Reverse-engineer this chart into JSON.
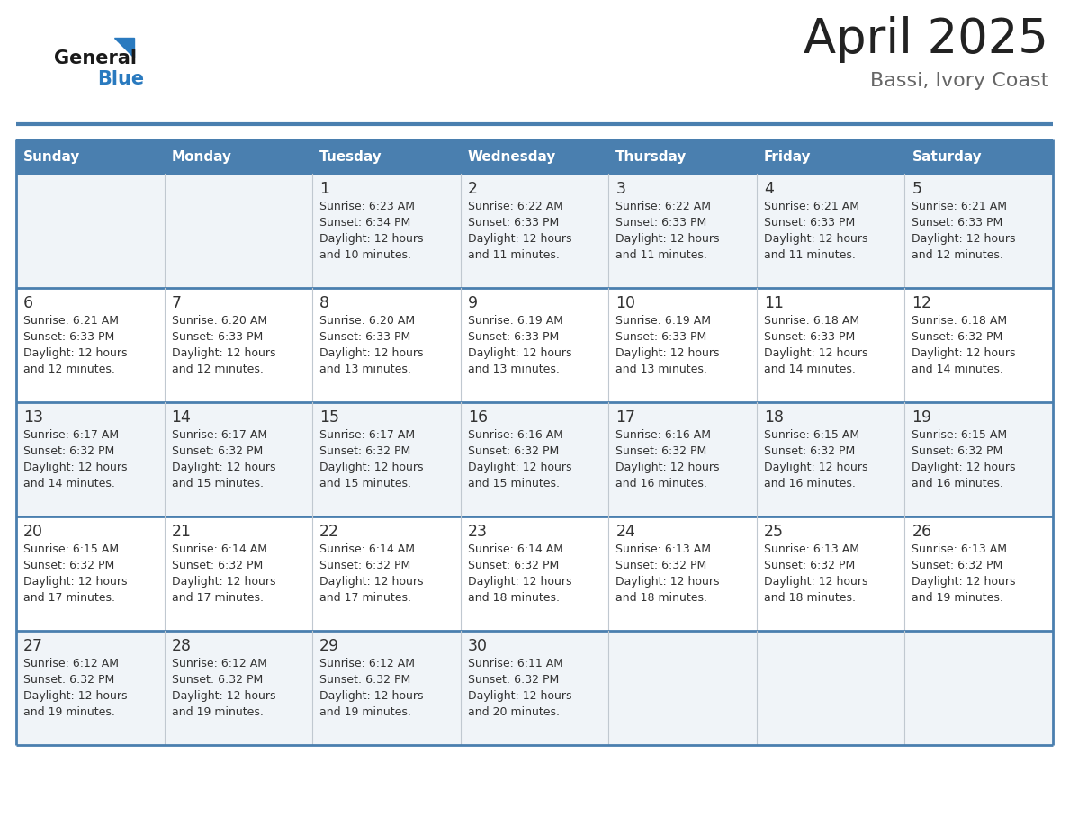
{
  "title": "April 2025",
  "subtitle": "Bassi, Ivory Coast",
  "header_color": "#4a7faf",
  "header_text_color": "#ffffff",
  "row0_color": "#f0f4f8",
  "row1_color": "#ffffff",
  "border_color": "#4a7faf",
  "text_color": "#333333",
  "days_of_week": [
    "Sunday",
    "Monday",
    "Tuesday",
    "Wednesday",
    "Thursday",
    "Friday",
    "Saturday"
  ],
  "logo_general_color": "#1a1a1a",
  "logo_blue_color": "#2a7abf",
  "logo_triangle_color": "#2a7abf",
  "title_color": "#222222",
  "subtitle_color": "#666666",
  "weeks": [
    [
      {
        "day": "",
        "info": ""
      },
      {
        "day": "",
        "info": ""
      },
      {
        "day": "1",
        "info": "Sunrise: 6:23 AM\nSunset: 6:34 PM\nDaylight: 12 hours\nand 10 minutes."
      },
      {
        "day": "2",
        "info": "Sunrise: 6:22 AM\nSunset: 6:33 PM\nDaylight: 12 hours\nand 11 minutes."
      },
      {
        "day": "3",
        "info": "Sunrise: 6:22 AM\nSunset: 6:33 PM\nDaylight: 12 hours\nand 11 minutes."
      },
      {
        "day": "4",
        "info": "Sunrise: 6:21 AM\nSunset: 6:33 PM\nDaylight: 12 hours\nand 11 minutes."
      },
      {
        "day": "5",
        "info": "Sunrise: 6:21 AM\nSunset: 6:33 PM\nDaylight: 12 hours\nand 12 minutes."
      }
    ],
    [
      {
        "day": "6",
        "info": "Sunrise: 6:21 AM\nSunset: 6:33 PM\nDaylight: 12 hours\nand 12 minutes."
      },
      {
        "day": "7",
        "info": "Sunrise: 6:20 AM\nSunset: 6:33 PM\nDaylight: 12 hours\nand 12 minutes."
      },
      {
        "day": "8",
        "info": "Sunrise: 6:20 AM\nSunset: 6:33 PM\nDaylight: 12 hours\nand 13 minutes."
      },
      {
        "day": "9",
        "info": "Sunrise: 6:19 AM\nSunset: 6:33 PM\nDaylight: 12 hours\nand 13 minutes."
      },
      {
        "day": "10",
        "info": "Sunrise: 6:19 AM\nSunset: 6:33 PM\nDaylight: 12 hours\nand 13 minutes."
      },
      {
        "day": "11",
        "info": "Sunrise: 6:18 AM\nSunset: 6:33 PM\nDaylight: 12 hours\nand 14 minutes."
      },
      {
        "day": "12",
        "info": "Sunrise: 6:18 AM\nSunset: 6:32 PM\nDaylight: 12 hours\nand 14 minutes."
      }
    ],
    [
      {
        "day": "13",
        "info": "Sunrise: 6:17 AM\nSunset: 6:32 PM\nDaylight: 12 hours\nand 14 minutes."
      },
      {
        "day": "14",
        "info": "Sunrise: 6:17 AM\nSunset: 6:32 PM\nDaylight: 12 hours\nand 15 minutes."
      },
      {
        "day": "15",
        "info": "Sunrise: 6:17 AM\nSunset: 6:32 PM\nDaylight: 12 hours\nand 15 minutes."
      },
      {
        "day": "16",
        "info": "Sunrise: 6:16 AM\nSunset: 6:32 PM\nDaylight: 12 hours\nand 15 minutes."
      },
      {
        "day": "17",
        "info": "Sunrise: 6:16 AM\nSunset: 6:32 PM\nDaylight: 12 hours\nand 16 minutes."
      },
      {
        "day": "18",
        "info": "Sunrise: 6:15 AM\nSunset: 6:32 PM\nDaylight: 12 hours\nand 16 minutes."
      },
      {
        "day": "19",
        "info": "Sunrise: 6:15 AM\nSunset: 6:32 PM\nDaylight: 12 hours\nand 16 minutes."
      }
    ],
    [
      {
        "day": "20",
        "info": "Sunrise: 6:15 AM\nSunset: 6:32 PM\nDaylight: 12 hours\nand 17 minutes."
      },
      {
        "day": "21",
        "info": "Sunrise: 6:14 AM\nSunset: 6:32 PM\nDaylight: 12 hours\nand 17 minutes."
      },
      {
        "day": "22",
        "info": "Sunrise: 6:14 AM\nSunset: 6:32 PM\nDaylight: 12 hours\nand 17 minutes."
      },
      {
        "day": "23",
        "info": "Sunrise: 6:14 AM\nSunset: 6:32 PM\nDaylight: 12 hours\nand 18 minutes."
      },
      {
        "day": "24",
        "info": "Sunrise: 6:13 AM\nSunset: 6:32 PM\nDaylight: 12 hours\nand 18 minutes."
      },
      {
        "day": "25",
        "info": "Sunrise: 6:13 AM\nSunset: 6:32 PM\nDaylight: 12 hours\nand 18 minutes."
      },
      {
        "day": "26",
        "info": "Sunrise: 6:13 AM\nSunset: 6:32 PM\nDaylight: 12 hours\nand 19 minutes."
      }
    ],
    [
      {
        "day": "27",
        "info": "Sunrise: 6:12 AM\nSunset: 6:32 PM\nDaylight: 12 hours\nand 19 minutes."
      },
      {
        "day": "28",
        "info": "Sunrise: 6:12 AM\nSunset: 6:32 PM\nDaylight: 12 hours\nand 19 minutes."
      },
      {
        "day": "29",
        "info": "Sunrise: 6:12 AM\nSunset: 6:32 PM\nDaylight: 12 hours\nand 19 minutes."
      },
      {
        "day": "30",
        "info": "Sunrise: 6:11 AM\nSunset: 6:32 PM\nDaylight: 12 hours\nand 20 minutes."
      },
      {
        "day": "",
        "info": ""
      },
      {
        "day": "",
        "info": ""
      },
      {
        "day": "",
        "info": ""
      }
    ]
  ]
}
